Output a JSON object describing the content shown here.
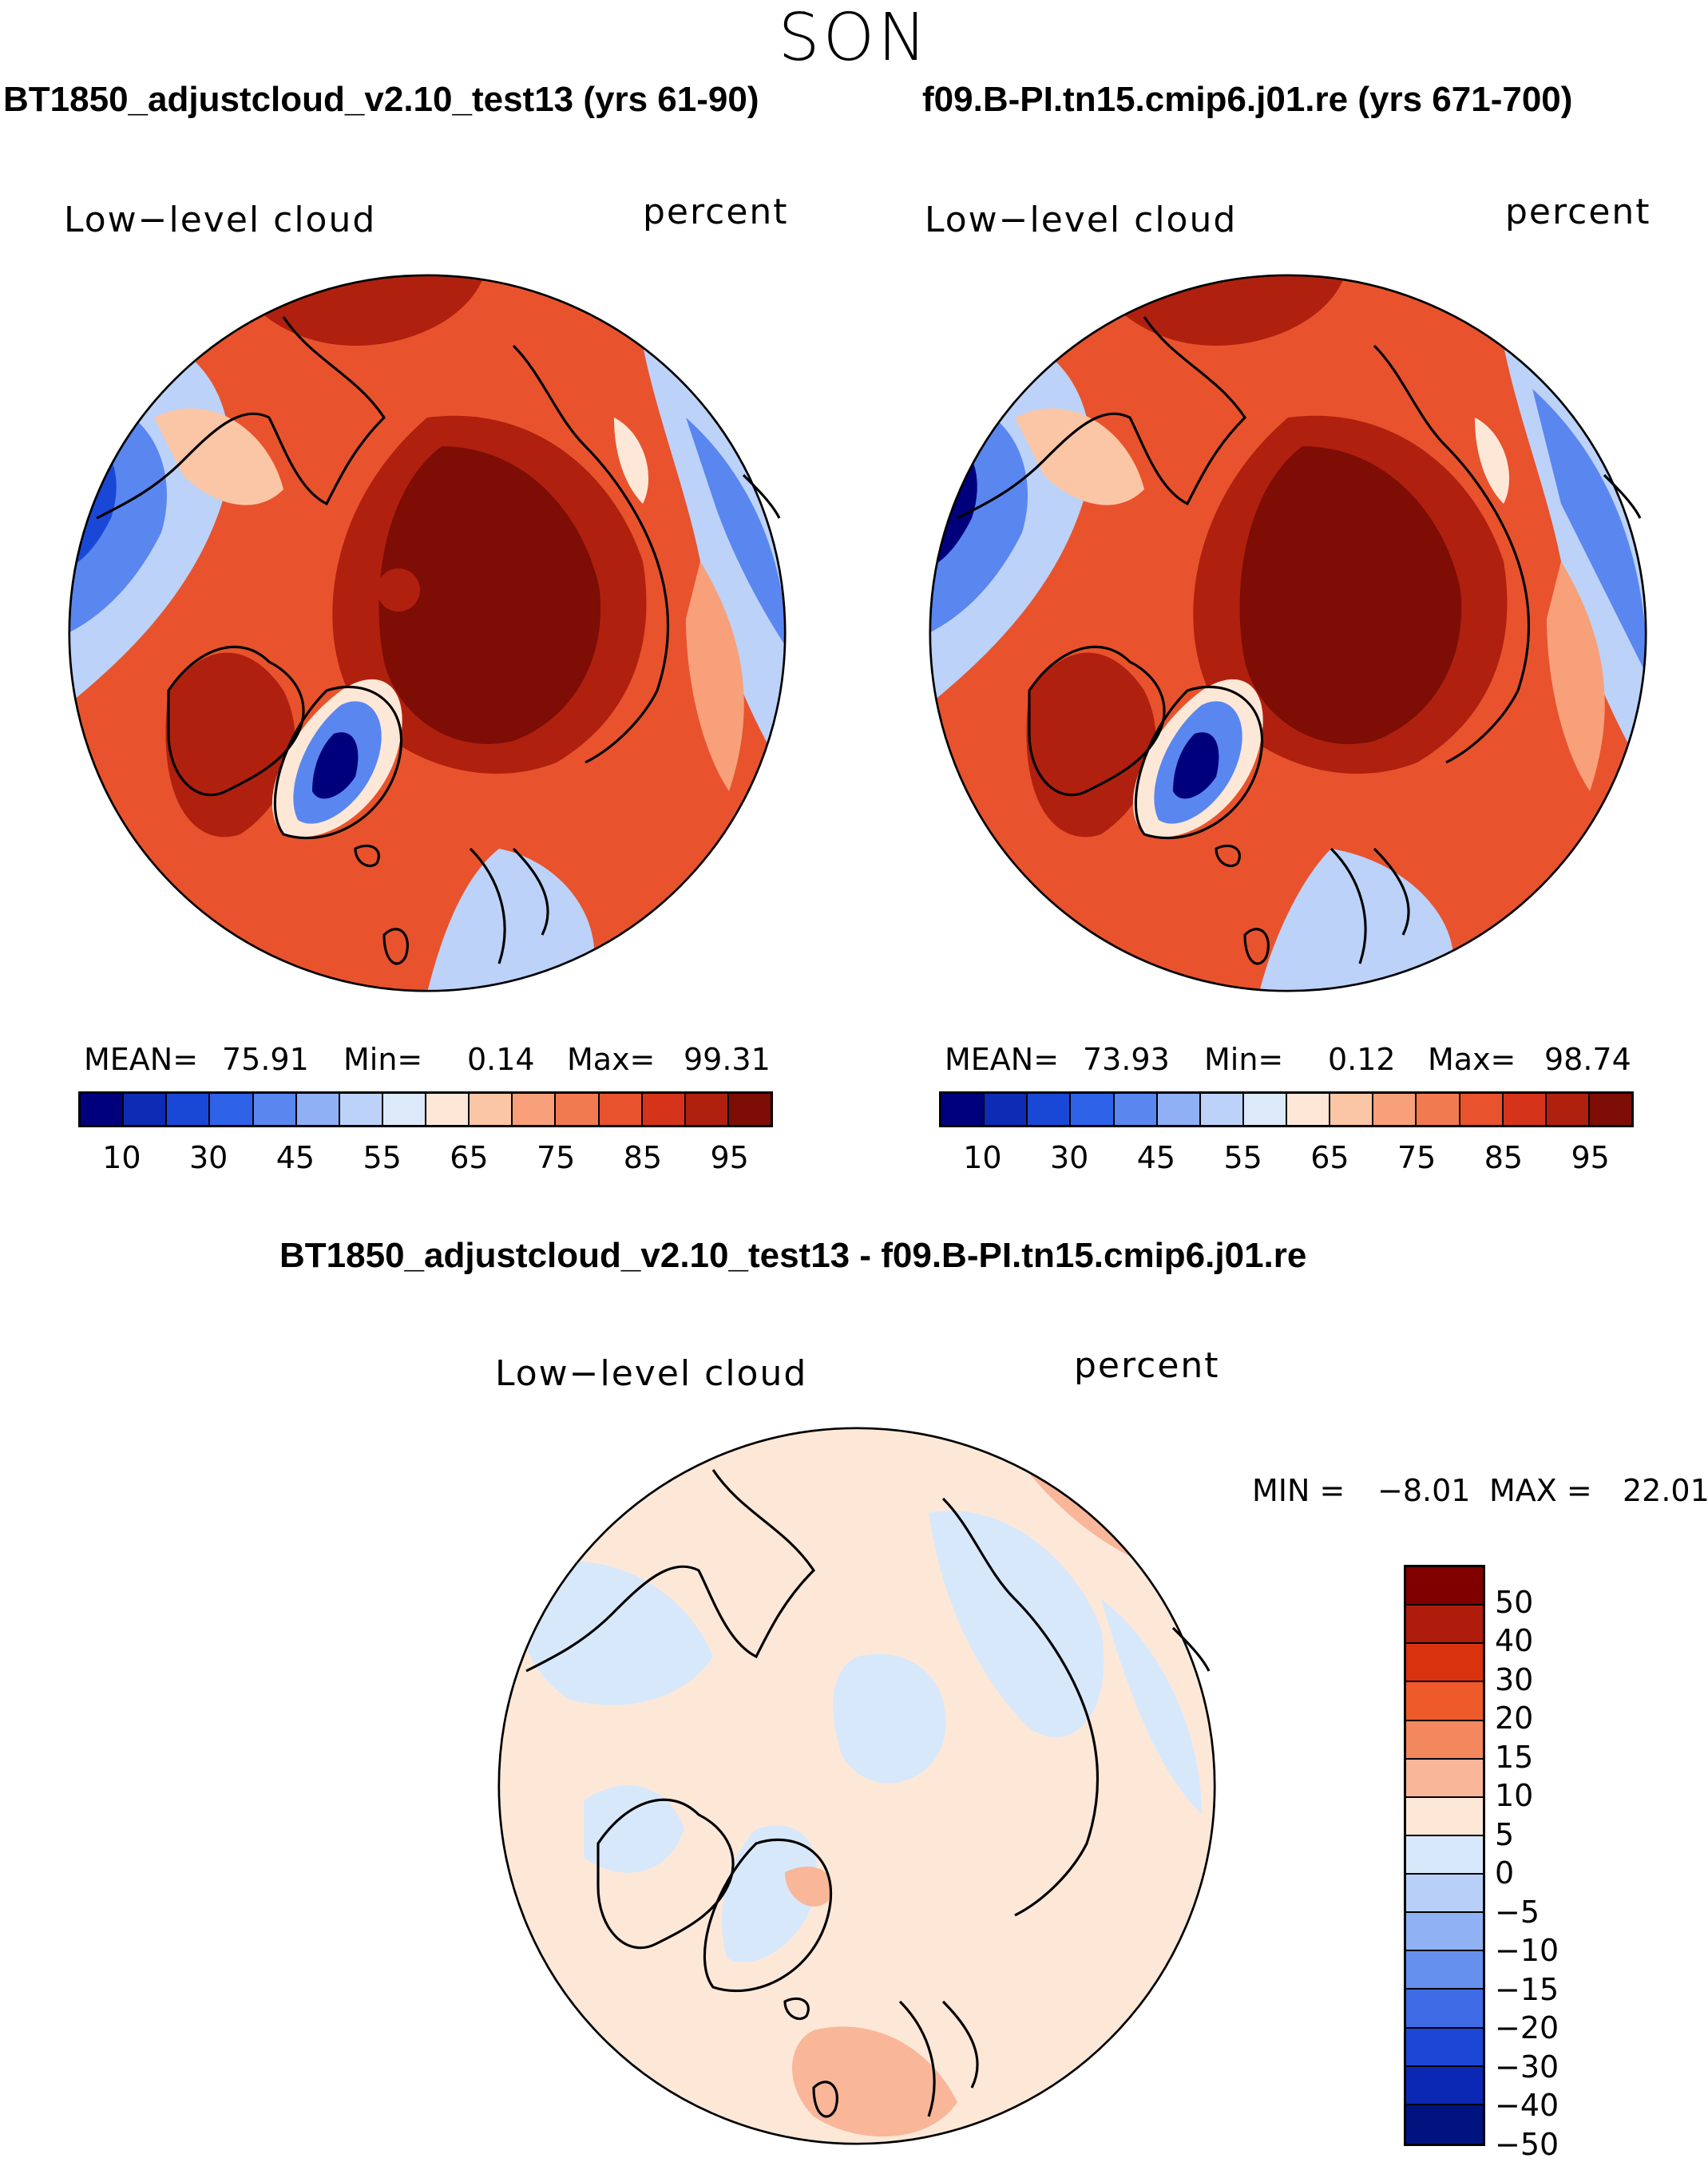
{
  "figure": {
    "season": "SON"
  },
  "panels": [
    {
      "title": "BT1850_adjustcloud_v2.10_test13 (yrs 61-90)",
      "variable": "Low−level cloud",
      "units": "percent",
      "stats": {
        "mean_label": "MEAN=",
        "mean": "75.91",
        "min_label": "Min=",
        "min": "0.14",
        "max_label": "Max=",
        "max": "99.31"
      }
    },
    {
      "title": "f09.B-PI.tn15.cmip6.j01.re (yrs 671-700)",
      "variable": "Low−level cloud",
      "units": "percent",
      "stats": {
        "mean_label": "MEAN=",
        "mean": "73.93",
        "min_label": "Min=",
        "min": "0.12",
        "max_label": "Max=",
        "max": "98.74"
      }
    }
  ],
  "diff_panel": {
    "title": "BT1850_adjustcloud_v2.10_test13 - f09.B-PI.tn15.cmip6.j01.re",
    "variable": "Low−level cloud",
    "units": "percent",
    "stats": {
      "min_label": "MIN =",
      "min": "−8.01",
      "max_label": "MAX =",
      "max": "22.01"
    }
  },
  "colorbars": {
    "absolute": {
      "colors": [
        "#00007d",
        "#0d2bb4",
        "#1a48d6",
        "#2e62e8",
        "#5a86f0",
        "#8fb0f5",
        "#bcd2f8",
        "#dce9f8",
        "#fde8d8",
        "#fbc6a6",
        "#f7a07a",
        "#f27a50",
        "#e8532d",
        "#d6341a",
        "#b0200f",
        "#7d0d05"
      ],
      "tick_labels": [
        "10",
        "30",
        "45",
        "55",
        "65",
        "75",
        "85",
        "95"
      ]
    },
    "difference": {
      "colors": [
        "#800000",
        "#b01c0c",
        "#d8320f",
        "#ee5a2a",
        "#f3875e",
        "#f9b699",
        "#fde8d8",
        "#d8e8fb",
        "#b8cff8",
        "#8fb2f4",
        "#6690ee",
        "#3f6be6",
        "#1c46d6",
        "#0b28b4",
        "#00137f"
      ],
      "tick_labels": [
        "50",
        "40",
        "30",
        "20",
        "15",
        "10",
        "5",
        "0",
        "−5",
        "−10",
        "−15",
        "−20",
        "−30",
        "−40",
        "−50"
      ]
    }
  },
  "map_palette": {
    "ocean_high": "#7d0d05",
    "dark": "#b0200f",
    "red": "#e8532d",
    "orange": "#f7a07a",
    "peach": "#fbc6a6",
    "cream": "#fde8d8",
    "lightblue": "#bcd2f8",
    "blue": "#5a86f0",
    "deepblue": "#1a48d6",
    "navy": "#00007d",
    "diff_bg": "#fde8d8",
    "diff_blue": "#d8e8fb",
    "diff_peach": "#f9b699"
  }
}
